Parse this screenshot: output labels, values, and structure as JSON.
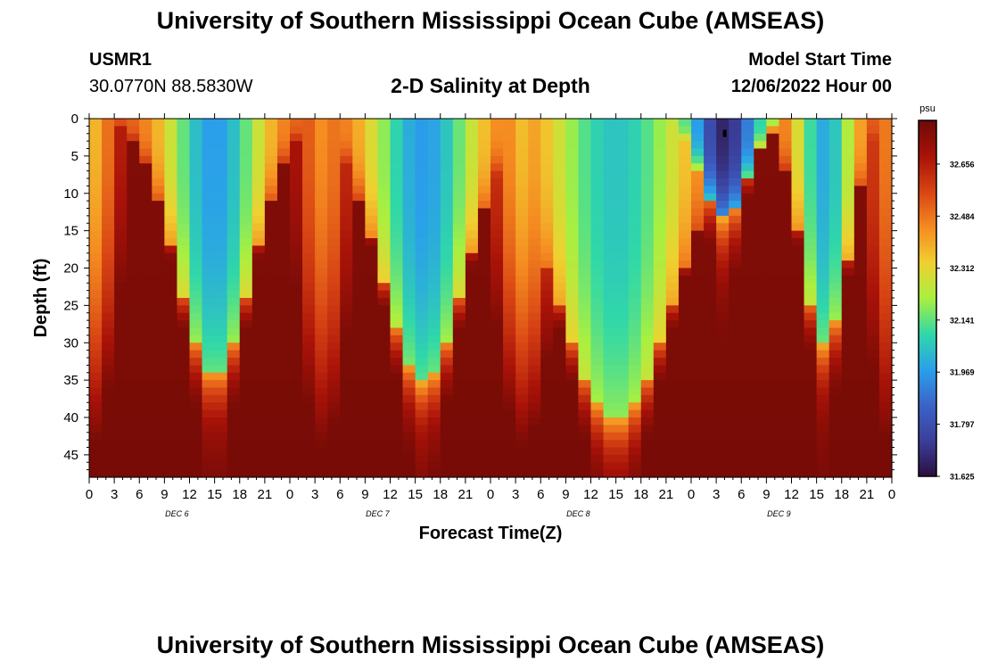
{
  "header": {
    "title": "University of Southern Mississippi Ocean Cube (AMSEAS)",
    "station": "USMR1",
    "coords": "30.0770N  88.5830W",
    "subtitle": "2-D Salinity at Depth",
    "start_label": "Model Start Time",
    "start_value": "12/06/2022 Hour 00"
  },
  "footer": {
    "title": "University of Southern Mississippi Ocean Cube (AMSEAS)"
  },
  "chart_data": {
    "type": "heatmap",
    "title": "2-D Salinity at Depth",
    "xlabel": "Forecast Time(Z)",
    "ylabel": "Depth (ft)",
    "x_range_hours": [
      0,
      96
    ],
    "y_range_ft": [
      0,
      48
    ],
    "x_tick_labels": [
      "0",
      "3",
      "6",
      "9",
      "12",
      "15",
      "18",
      "21",
      "0",
      "3",
      "6",
      "9",
      "12",
      "15",
      "18",
      "21",
      "0",
      "3",
      "6",
      "9",
      "12",
      "15",
      "18",
      "21",
      "0",
      "3",
      "6",
      "9",
      "12",
      "15",
      "18",
      "21",
      "0"
    ],
    "y_ticks": [
      0,
      5,
      10,
      15,
      20,
      25,
      30,
      35,
      40,
      45
    ],
    "day_labels": [
      "DEC 6",
      "DEC 7",
      "DEC 8",
      "DEC 9"
    ],
    "colorbar": {
      "unit": "psu",
      "min": 31.625,
      "max": 32.8,
      "tick_values": [
        32.656,
        32.484,
        32.312,
        32.141,
        31.969,
        31.797,
        31.625
      ]
    },
    "colorbar_stops": [
      "#2b0f3e",
      "#3b3f9a",
      "#3b63c8",
      "#2aa0ea",
      "#30d8a8",
      "#a8f040",
      "#f0d030",
      "#f58a20",
      "#d84414",
      "#a81208",
      "#6e0a06"
    ],
    "fresh_lenses": [
      {
        "center_hour": 15,
        "width_hours": 4.5,
        "depth_ft": 34,
        "surface_s": 31.97
      },
      {
        "center_hour": 40,
        "width_hours": 5,
        "depth_ft": 35,
        "surface_s": 31.97
      },
      {
        "center_hour": 63,
        "width_hours": 7,
        "depth_ft": 40,
        "surface_s": 32.05
      },
      {
        "center_hour": 76,
        "width_hours": 2.8,
        "depth_ft": 13,
        "surface_s": 31.68
      },
      {
        "center_hour": 88,
        "width_hours": 2.8,
        "depth_ft": 30,
        "surface_s": 32.0
      }
    ],
    "salty_mins": [
      {
        "center_hour": 0,
        "surface_s": 32.36
      },
      {
        "center_hour": 28,
        "surface_s": 32.44
      },
      {
        "center_hour": 52,
        "surface_s": 32.36
      },
      {
        "center_hour": 96,
        "surface_s": 32.46
      }
    ],
    "bottom_salinity": 32.78
  }
}
